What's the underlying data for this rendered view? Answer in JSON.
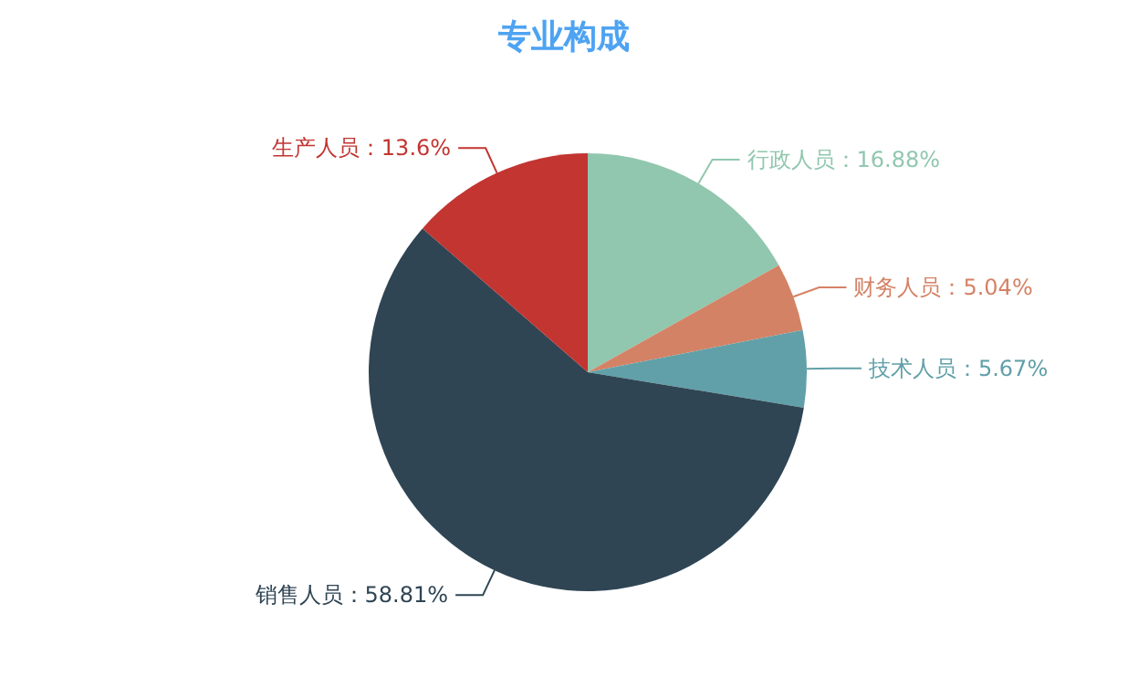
{
  "chart_data": {
    "type": "pie",
    "title": "专业构成",
    "categories": [
      "行政人员",
      "财务人员",
      "技术人员",
      "销售人员",
      "生产人员"
    ],
    "values": [
      16.88,
      5.04,
      5.67,
      58.81,
      13.6
    ],
    "colors": [
      "#91c7ae",
      "#d48265",
      "#61a0a8",
      "#2f4554",
      "#c23531"
    ],
    "value_labels": [
      "16.88%",
      "5.04%",
      "5.67%",
      "58.81%",
      "13.6%"
    ],
    "legend": false
  }
}
